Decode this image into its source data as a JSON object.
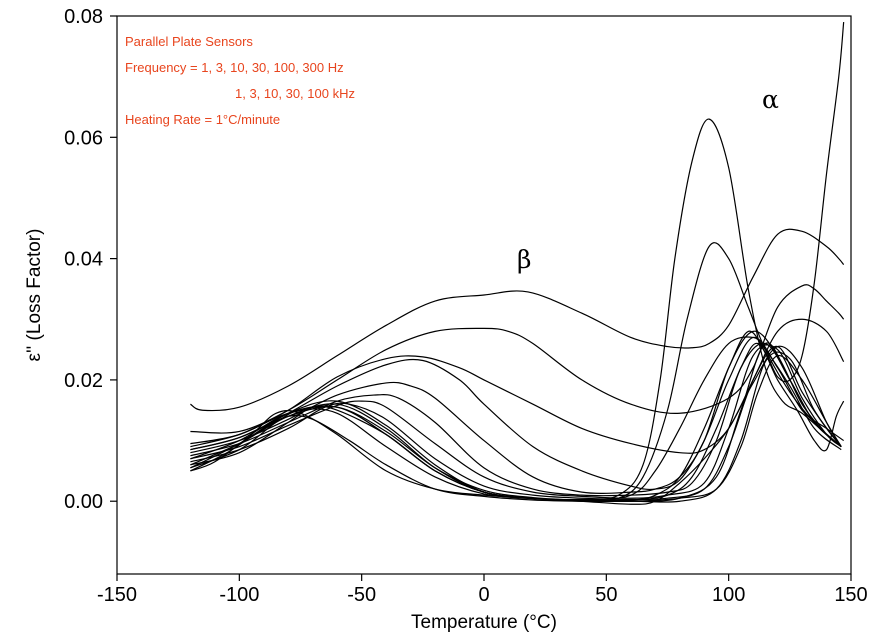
{
  "chart_data": {
    "type": "line",
    "xlabel": "Temperature (°C)",
    "ylabel": "ε'' (Loss Factor)",
    "xlim": [
      -150,
      150
    ],
    "ylim": [
      -0.012,
      0.08
    ],
    "x_ticks": [
      "-150",
      "-100",
      "-50",
      "0",
      "50",
      "100",
      "150"
    ],
    "y_ticks": [
      "0.00",
      "0.02",
      "0.04",
      "0.06",
      "0.08"
    ],
    "y_tick_values": [
      0.0,
      0.02,
      0.04,
      0.06,
      0.08
    ],
    "x_tick_values": [
      -150,
      -100,
      -50,
      0,
      50,
      100,
      150
    ],
    "grid": false,
    "legend": "none",
    "annotations": [
      "Parallel Plate Sensors",
      "Frequency = 1, 3, 10, 30, 100, 300 Hz",
      "1, 3, 10, 30, 100 kHz",
      "Heating Rate = 1°C/minute"
    ],
    "annotation_color": "#e8451e",
    "peak_labels": [
      "β",
      "α"
    ],
    "series": [
      {
        "x": [
          -120,
          -115,
          -100,
          -80,
          -60,
          -40,
          -20,
          0,
          18,
          40,
          60,
          75,
          85,
          92,
          100,
          110,
          120,
          130,
          140,
          145,
          147
        ],
        "y": [
          0.016,
          0.015,
          0.0155,
          0.019,
          0.024,
          0.029,
          0.033,
          0.034,
          0.0345,
          0.031,
          0.027,
          0.0255,
          0.0253,
          0.026,
          0.029,
          0.037,
          0.044,
          0.0445,
          0.042,
          0.04,
          0.039
        ]
      },
      {
        "x": [
          -120,
          -100,
          -80,
          -60,
          -40,
          -20,
          0,
          10,
          20,
          40,
          60,
          80,
          100,
          110,
          120,
          130,
          135,
          140,
          145,
          147
        ],
        "y": [
          0.0115,
          0.0115,
          0.015,
          0.02,
          0.025,
          0.028,
          0.0285,
          0.028,
          0.026,
          0.02,
          0.016,
          0.0145,
          0.017,
          0.022,
          0.032,
          0.0355,
          0.035,
          0.033,
          0.031,
          0.03
        ]
      },
      {
        "x": [
          -120,
          -100,
          -80,
          -60,
          -40,
          -25,
          -10,
          0,
          20,
          40,
          60,
          80,
          90,
          100,
          110,
          120,
          130,
          140,
          147
        ],
        "y": [
          0.0095,
          0.011,
          0.015,
          0.0205,
          0.0235,
          0.0238,
          0.022,
          0.02,
          0.016,
          0.012,
          0.0095,
          0.008,
          0.0085,
          0.012,
          0.02,
          0.028,
          0.03,
          0.028,
          0.023
        ]
      },
      {
        "x": [
          -120,
          -100,
          -80,
          -60,
          -40,
          -25,
          -10,
          0,
          20,
          40,
          60,
          70,
          80,
          90,
          100,
          110,
          120,
          130,
          140,
          147
        ],
        "y": [
          0.0085,
          0.0105,
          0.0145,
          0.019,
          0.0225,
          0.0232,
          0.02,
          0.016,
          0.009,
          0.005,
          0.0025,
          0.002,
          0.0035,
          0.01,
          0.02,
          0.027,
          0.022,
          0.015,
          0.012,
          0.01
        ]
      },
      {
        "x": [
          -120,
          -100,
          -80,
          -60,
          -40,
          -30,
          -20,
          0,
          20,
          40,
          60,
          70,
          80,
          90,
          100,
          110,
          120,
          130,
          140,
          146
        ],
        "y": [
          0.008,
          0.01,
          0.0135,
          0.0175,
          0.0195,
          0.019,
          0.017,
          0.01,
          0.004,
          0.0015,
          0.0015,
          0.002,
          0.004,
          0.01,
          0.022,
          0.028,
          0.024,
          0.016,
          0.011,
          0.009
        ]
      },
      {
        "x": [
          -120,
          -100,
          -80,
          -60,
          -45,
          -35,
          -20,
          0,
          20,
          40,
          60,
          75,
          85,
          95,
          105,
          115,
          125,
          135,
          146
        ],
        "y": [
          0.0075,
          0.0095,
          0.013,
          0.0165,
          0.0175,
          0.017,
          0.013,
          0.0055,
          0.002,
          0.001,
          0.001,
          0.0015,
          0.003,
          0.01,
          0.022,
          0.026,
          0.02,
          0.013,
          0.009
        ]
      },
      {
        "x": [
          -120,
          -100,
          -80,
          -60,
          -50,
          -40,
          -20,
          0,
          20,
          40,
          60,
          75,
          90,
          100,
          110,
          120,
          130,
          140,
          146
        ],
        "y": [
          0.007,
          0.009,
          0.0125,
          0.0158,
          0.0165,
          0.0155,
          0.0095,
          0.004,
          0.0015,
          0.0008,
          0.0005,
          0.001,
          0.003,
          0.012,
          0.024,
          0.025,
          0.017,
          0.011,
          0.009
        ]
      },
      {
        "x": [
          -120,
          -100,
          -80,
          -65,
          -55,
          -40,
          -20,
          0,
          20,
          40,
          60,
          75,
          90,
          100,
          110,
          120,
          130,
          140,
          146
        ],
        "y": [
          0.0065,
          0.0085,
          0.012,
          0.0155,
          0.016,
          0.0135,
          0.007,
          0.0025,
          0.001,
          0.0005,
          0.0003,
          0.0005,
          0.002,
          0.009,
          0.02,
          0.0255,
          0.018,
          0.012,
          0.009
        ]
      },
      {
        "x": [
          -120,
          -100,
          -80,
          -70,
          -60,
          -40,
          -20,
          0,
          20,
          40,
          60,
          80,
          95,
          105,
          115,
          125,
          135,
          146
        ],
        "y": [
          0.006,
          0.008,
          0.013,
          0.0155,
          0.015,
          0.011,
          0.005,
          0.0015,
          0.0005,
          0.0002,
          0.0,
          0.0005,
          0.004,
          0.015,
          0.026,
          0.02,
          0.013,
          0.009
        ]
      },
      {
        "x": [
          -120,
          -100,
          -85,
          -75,
          -60,
          -40,
          -20,
          0,
          20,
          40,
          60,
          80,
          95,
          105,
          115,
          125,
          135,
          146
        ],
        "y": [
          0.0055,
          0.0085,
          0.013,
          0.015,
          0.0145,
          0.009,
          0.004,
          0.0012,
          0.0004,
          0.0,
          0.0,
          0.0,
          0.002,
          0.01,
          0.023,
          0.0235,
          0.015,
          0.009
        ]
      },
      {
        "x": [
          -120,
          -105,
          -90,
          -80,
          -70,
          -55,
          -40,
          -20,
          0,
          20,
          40,
          60,
          80,
          95,
          105,
          112,
          120,
          130,
          140,
          146
        ],
        "y": [
          0.005,
          0.008,
          0.012,
          0.014,
          0.0135,
          0.01,
          0.006,
          0.002,
          0.0008,
          0.0002,
          0.0,
          0.0,
          0.0005,
          0.002,
          0.009,
          0.018,
          0.024,
          0.02,
          0.013,
          0.009
        ]
      },
      {
        "x": [
          -120,
          -110,
          -95,
          -85,
          -75,
          -60,
          -40,
          -20,
          0,
          20,
          40,
          60,
          70,
          80,
          90,
          100,
          110,
          120,
          130,
          140,
          146
        ],
        "y": [
          0.005,
          0.0065,
          0.011,
          0.0145,
          0.0145,
          0.011,
          0.005,
          0.002,
          0.001,
          0.0005,
          0.0,
          -0.0005,
          0.0,
          0.003,
          0.007,
          0.012,
          0.0195,
          0.0255,
          0.022,
          0.013,
          0.009
        ]
      },
      {
        "x": [
          -120,
          -100,
          -80,
          -60,
          -40,
          -20,
          0,
          20,
          40,
          55,
          65,
          72,
          78,
          85,
          92,
          100,
          108,
          115,
          122,
          130,
          140,
          146
        ],
        "y": [
          0.0055,
          0.0095,
          0.0145,
          0.0165,
          0.0125,
          0.006,
          0.0015,
          0.0005,
          0.0003,
          0.001,
          0.006,
          0.02,
          0.04,
          0.056,
          0.063,
          0.055,
          0.035,
          0.022,
          0.0165,
          0.0145,
          0.011,
          0.009
        ]
      },
      {
        "x": [
          -120,
          -100,
          -80,
          -60,
          -40,
          -20,
          0,
          20,
          40,
          55,
          65,
          75,
          83,
          92,
          100,
          108,
          115,
          125,
          135,
          146
        ],
        "y": [
          0.006,
          0.0095,
          0.014,
          0.016,
          0.012,
          0.0055,
          0.0015,
          0.0005,
          0.0002,
          0.0005,
          0.004,
          0.015,
          0.03,
          0.042,
          0.04,
          0.032,
          0.025,
          0.018,
          0.013,
          0.009
        ]
      },
      {
        "x": [
          -120,
          -100,
          -80,
          -60,
          -40,
          -20,
          0,
          20,
          40,
          60,
          70,
          80,
          90,
          100,
          110,
          115,
          125,
          135,
          146
        ],
        "y": [
          0.007,
          0.01,
          0.0145,
          0.0155,
          0.011,
          0.005,
          0.0015,
          0.0005,
          0.0002,
          0.001,
          0.005,
          0.012,
          0.02,
          0.026,
          0.027,
          0.025,
          0.019,
          0.012,
          0.0085
        ]
      },
      {
        "x": [
          -120,
          -100,
          -80,
          -60,
          -40,
          -20,
          0,
          20,
          40,
          60,
          70,
          80,
          90,
          100,
          108,
          115,
          120,
          125,
          130,
          135,
          140,
          145,
          147
        ],
        "y": [
          0.009,
          0.011,
          0.0145,
          0.0155,
          0.0115,
          0.0055,
          0.0018,
          0.0006,
          0.0002,
          0.0002,
          0.001,
          0.004,
          0.012,
          0.022,
          0.028,
          0.0245,
          0.0205,
          0.02,
          0.024,
          0.036,
          0.054,
          0.07,
          0.079
        ]
      },
      {
        "x": [
          -120,
          -100,
          -80,
          -60,
          -40,
          -20,
          0,
          20,
          40,
          60,
          75,
          85,
          95,
          105,
          112,
          120,
          128,
          135,
          140,
          144,
          147
        ],
        "y": [
          0.0085,
          0.0105,
          0.014,
          0.0155,
          0.011,
          0.005,
          0.0015,
          0.0005,
          0.0002,
          0.0002,
          0.001,
          0.004,
          0.012,
          0.022,
          0.026,
          0.02,
          0.015,
          0.01,
          0.0085,
          0.014,
          0.0165
        ]
      }
    ]
  }
}
